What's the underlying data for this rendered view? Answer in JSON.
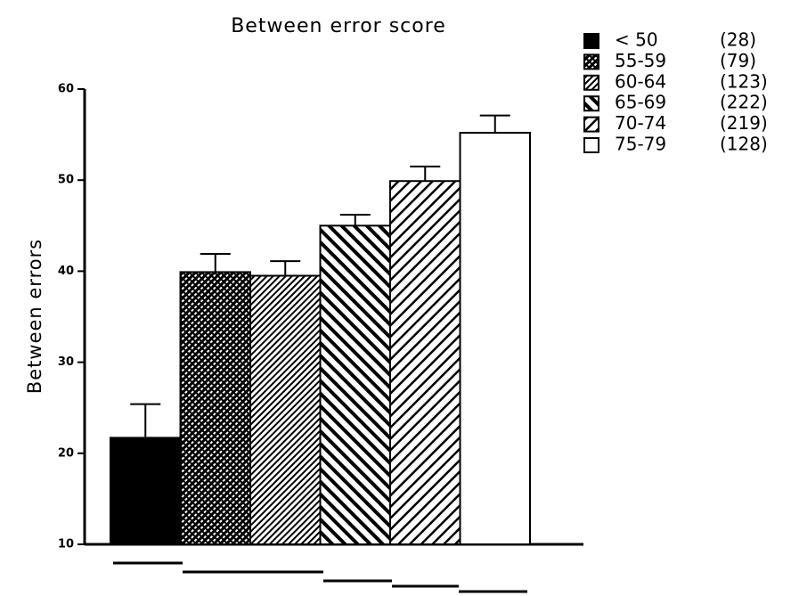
{
  "chart_data": {
    "type": "bar",
    "title": "Between error score",
    "y_label": "Between errors",
    "categories": [
      "< 50",
      "55-59",
      "60-64",
      "65-69",
      "70-74",
      "75-79"
    ],
    "legend_counts": [
      "(28)",
      "(79)",
      "(123)",
      "(222)",
      "(219)",
      "(128)"
    ],
    "values": [
      21.7,
      39.9,
      39.5,
      45,
      49.9,
      55.2
    ],
    "errors": [
      3.7,
      2,
      1.6,
      1.2,
      1.6,
      1.9
    ],
    "patterns": [
      "solid",
      "crosshatch",
      "fine-diagonal",
      "back-diagonal",
      "diagonal",
      "none"
    ],
    "ylim": [
      10,
      60
    ],
    "yticks": [
      10,
      20,
      30,
      40,
      50,
      60
    ]
  }
}
